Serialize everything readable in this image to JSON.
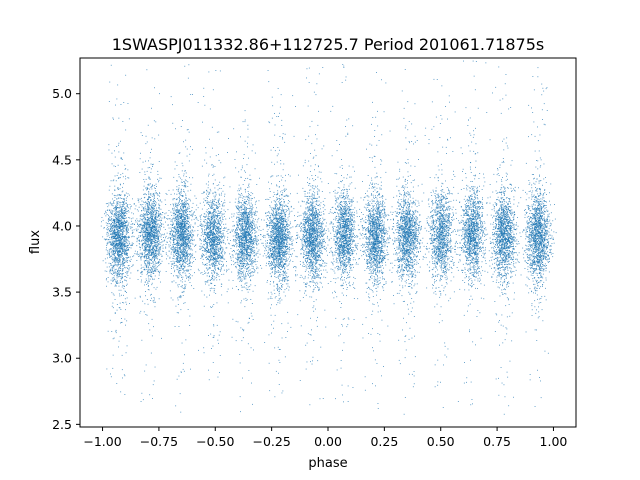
{
  "chart_data": {
    "type": "scatter",
    "title": "1SWASPJ011332.86+112725.7 Period 201061.71875s",
    "xlabel": "phase",
    "ylabel": "flux",
    "xlim": [
      -1.1,
      1.1
    ],
    "ylim": [
      2.48,
      5.27
    ],
    "xticks": [
      {
        "value": -1.0,
        "label": "−1.00"
      },
      {
        "value": -0.75,
        "label": "−0.75"
      },
      {
        "value": -0.5,
        "label": "−0.50"
      },
      {
        "value": -0.25,
        "label": "−0.25"
      },
      {
        "value": 0.0,
        "label": "0.00"
      },
      {
        "value": 0.25,
        "label": "0.25"
      },
      {
        "value": 0.5,
        "label": "0.50"
      },
      {
        "value": 0.75,
        "label": "0.75"
      },
      {
        "value": 1.0,
        "label": "1.00"
      }
    ],
    "yticks": [
      {
        "value": 2.5,
        "label": "2.5"
      },
      {
        "value": 3.0,
        "label": "3.0"
      },
      {
        "value": 3.5,
        "label": "3.5"
      },
      {
        "value": 4.0,
        "label": "4.0"
      },
      {
        "value": 4.5,
        "label": "4.5"
      },
      {
        "value": 5.0,
        "label": "5.0"
      }
    ],
    "grid": false,
    "marker_color": "#1f77b4",
    "series": [
      {
        "clusters": [
          {
            "x": -0.93,
            "y": 3.92,
            "n": 1600
          },
          {
            "x": -0.79,
            "y": 3.95,
            "n": 1500
          },
          {
            "x": -0.65,
            "y": 3.93,
            "n": 1500
          },
          {
            "x": -0.51,
            "y": 3.92,
            "n": 1300
          },
          {
            "x": -0.37,
            "y": 3.92,
            "n": 1400
          },
          {
            "x": -0.22,
            "y": 3.9,
            "n": 1600
          },
          {
            "x": -0.07,
            "y": 3.92,
            "n": 1500
          },
          {
            "x": 0.07,
            "y": 3.93,
            "n": 1300
          },
          {
            "x": 0.21,
            "y": 3.92,
            "n": 1400
          },
          {
            "x": 0.35,
            "y": 3.92,
            "n": 1400
          },
          {
            "x": 0.5,
            "y": 3.93,
            "n": 1200
          },
          {
            "x": 0.64,
            "y": 3.95,
            "n": 1300
          },
          {
            "x": 0.78,
            "y": 3.93,
            "n": 1400
          },
          {
            "x": 0.93,
            "y": 3.92,
            "n": 1500
          }
        ]
      }
    ]
  }
}
